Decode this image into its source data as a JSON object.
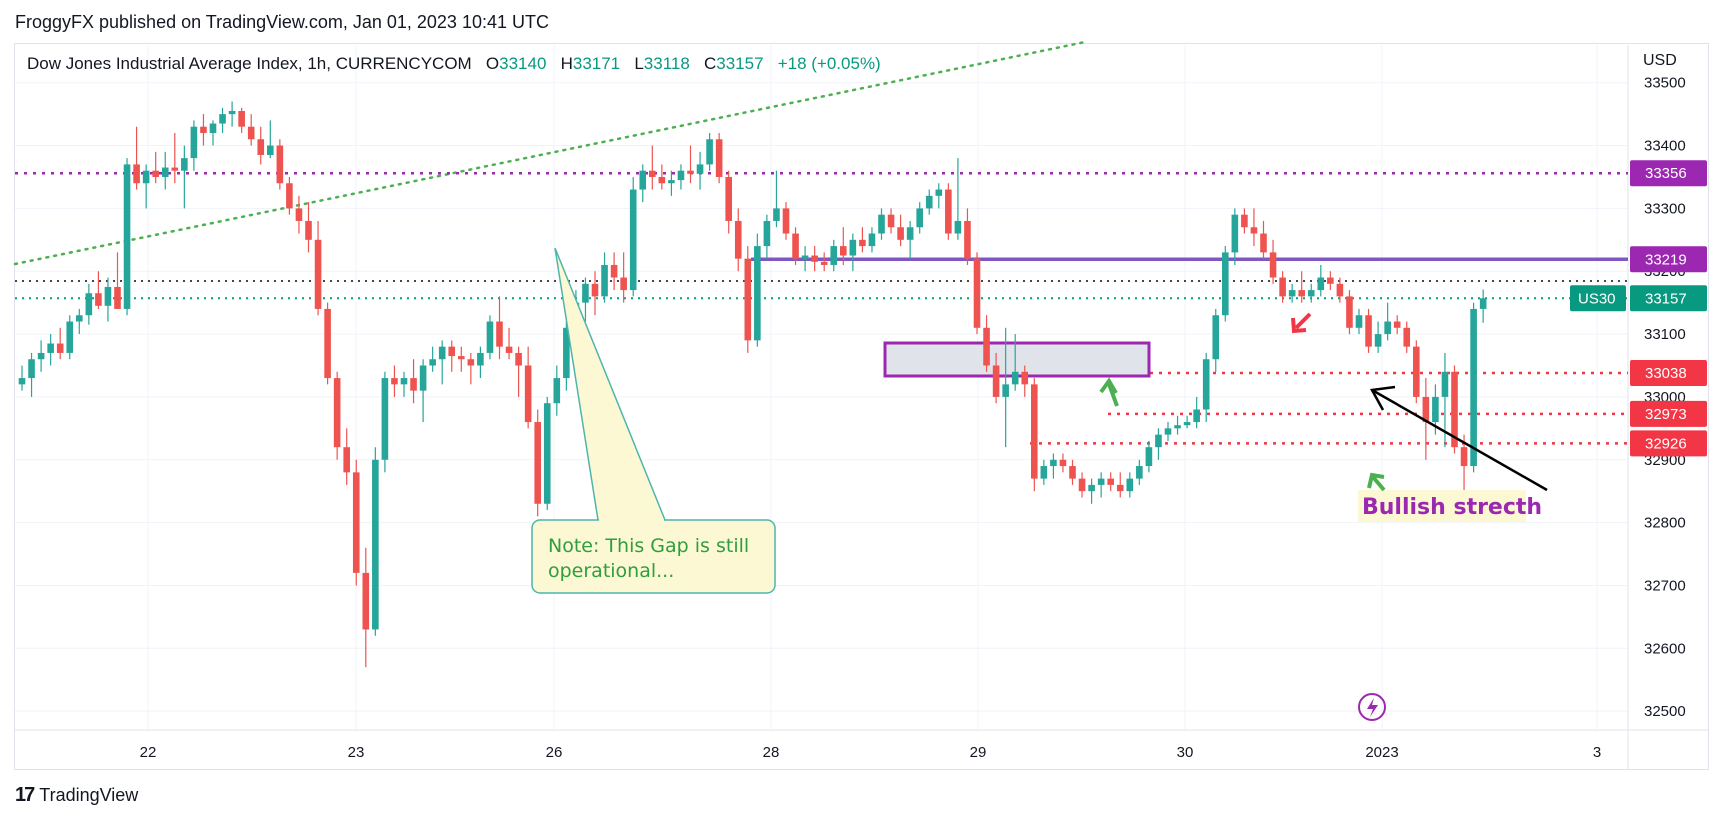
{
  "header": {
    "published": "FroggyFX published on TradingView.com, Jan 01, 2023 10:41 UTC"
  },
  "legend": {
    "symbol": "Dow Jones Industrial Average Index, 1h, CURRENCYCOM",
    "o_label": "O",
    "o_value": "33140",
    "h_label": "H",
    "h_value": "33171",
    "l_label": "L",
    "l_value": "33118",
    "c_label": "C",
    "c_value": "33157",
    "change": "+18 (+0.05%)"
  },
  "axis": {
    "currency": "USD"
  },
  "footer": {
    "brand": "TradingView",
    "logo_glyph": "17"
  },
  "colors": {
    "up": "#26a69a",
    "down": "#ef5350",
    "purple": "#9c27b0",
    "trendline": "#4caf50",
    "red_level": "#f23645",
    "teal_level": "#089981"
  },
  "chart_data": {
    "type": "candlestick",
    "timeframe": "1h",
    "ylim": [
      32470,
      33560
    ],
    "y_ticks": [
      32500,
      32600,
      32700,
      32800,
      32900,
      33000,
      33100,
      33200,
      33300,
      33400,
      33500
    ],
    "x_ticks": [
      "22",
      "23",
      "26",
      "28",
      "29",
      "30",
      "2023",
      "3"
    ],
    "candles": [
      [
        33020,
        33050,
        33010,
        33030
      ],
      [
        33030,
        33070,
        33000,
        33060
      ],
      [
        33060,
        33090,
        33040,
        33070
      ],
      [
        33070,
        33100,
        33050,
        33085
      ],
      [
        33085,
        33110,
        33060,
        33070
      ],
      [
        33070,
        33130,
        33060,
        33120
      ],
      [
        33120,
        33140,
        33100,
        33130
      ],
      [
        33130,
        33180,
        33115,
        33165
      ],
      [
        33165,
        33200,
        33140,
        33145
      ],
      [
        33145,
        33190,
        33120,
        33175
      ],
      [
        33175,
        33230,
        33140,
        33140
      ],
      [
        33140,
        33380,
        33130,
        33370
      ],
      [
        33370,
        33430,
        33330,
        33340
      ],
      [
        33340,
        33370,
        33300,
        33360
      ],
      [
        33360,
        33390,
        33340,
        33350
      ],
      [
        33350,
        33390,
        33330,
        33365
      ],
      [
        33365,
        33420,
        33340,
        33360
      ],
      [
        33360,
        33400,
        33300,
        33380
      ],
      [
        33380,
        33440,
        33360,
        33430
      ],
      [
        33430,
        33450,
        33400,
        33420
      ],
      [
        33420,
        33440,
        33400,
        33435
      ],
      [
        33435,
        33460,
        33420,
        33450
      ],
      [
        33450,
        33470,
        33430,
        33455
      ],
      [
        33455,
        33460,
        33420,
        33430
      ],
      [
        33430,
        33450,
        33400,
        33410
      ],
      [
        33410,
        33430,
        33370,
        33385
      ],
      [
        33385,
        33440,
        33380,
        33400
      ],
      [
        33400,
        33410,
        33330,
        33340
      ],
      [
        33340,
        33350,
        33290,
        33300
      ],
      [
        33300,
        33320,
        33260,
        33280
      ],
      [
        33280,
        33310,
        33230,
        33250
      ],
      [
        33250,
        33280,
        33130,
        33140
      ],
      [
        33140,
        33150,
        33020,
        33030
      ],
      [
        33030,
        33040,
        32900,
        32920
      ],
      [
        32920,
        32950,
        32860,
        32880
      ],
      [
        32880,
        32900,
        32700,
        32720
      ],
      [
        32720,
        32760,
        32570,
        32630
      ],
      [
        32630,
        32920,
        32620,
        32900
      ],
      [
        32900,
        33040,
        32880,
        33030
      ],
      [
        33030,
        33050,
        33000,
        33020
      ],
      [
        33020,
        33040,
        33000,
        33030
      ],
      [
        33030,
        33060,
        32990,
        33010
      ],
      [
        33010,
        33060,
        32960,
        33050
      ],
      [
        33050,
        33080,
        33040,
        33060
      ],
      [
        33060,
        33090,
        33020,
        33080
      ],
      [
        33080,
        33090,
        33040,
        33065
      ],
      [
        33065,
        33080,
        33040,
        33060
      ],
      [
        33060,
        33070,
        33020,
        33050
      ],
      [
        33050,
        33080,
        33030,
        33070
      ],
      [
        33070,
        33130,
        33060,
        33120
      ],
      [
        33120,
        33160,
        33060,
        33080
      ],
      [
        33080,
        33110,
        33060,
        33070
      ],
      [
        33070,
        33080,
        33000,
        33050
      ],
      [
        33050,
        33080,
        32950,
        32960
      ],
      [
        32960,
        32980,
        32810,
        32830
      ],
      [
        32830,
        33000,
        32820,
        32990
      ],
      [
        32990,
        33050,
        32970,
        33030
      ],
      [
        33030,
        33120,
        33010,
        33110
      ],
      [
        33110,
        33170,
        33080,
        33150
      ],
      [
        33150,
        33190,
        33120,
        33180
      ],
      [
        33180,
        33200,
        33130,
        33160
      ],
      [
        33160,
        33230,
        33150,
        33210
      ],
      [
        33210,
        33230,
        33170,
        33190
      ],
      [
        33190,
        33230,
        33150,
        33170
      ],
      [
        33170,
        33350,
        33160,
        33330
      ],
      [
        33330,
        33370,
        33310,
        33360
      ],
      [
        33360,
        33400,
        33330,
        33350
      ],
      [
        33350,
        33370,
        33330,
        33340
      ],
      [
        33340,
        33360,
        33320,
        33345
      ],
      [
        33345,
        33370,
        33330,
        33360
      ],
      [
        33360,
        33400,
        33340,
        33355
      ],
      [
        33355,
        33390,
        33330,
        33370
      ],
      [
        33370,
        33420,
        33360,
        33410
      ],
      [
        33410,
        33420,
        33340,
        33350
      ],
      [
        33350,
        33360,
        33260,
        33280
      ],
      [
        33280,
        33300,
        33200,
        33220
      ],
      [
        33220,
        33240,
        33070,
        33090
      ],
      [
        33090,
        33260,
        33080,
        33240
      ],
      [
        33240,
        33290,
        33220,
        33280
      ],
      [
        33280,
        33360,
        33270,
        33300
      ],
      [
        33300,
        33310,
        33250,
        33260
      ],
      [
        33260,
        33270,
        33210,
        33220
      ],
      [
        33220,
        33240,
        33200,
        33225
      ],
      [
        33225,
        33240,
        33200,
        33215
      ],
      [
        33215,
        33230,
        33200,
        33210
      ],
      [
        33210,
        33250,
        33200,
        33240
      ],
      [
        33240,
        33270,
        33210,
        33225
      ],
      [
        33225,
        33260,
        33200,
        33250
      ],
      [
        33250,
        33270,
        33230,
        33240
      ],
      [
        33240,
        33270,
        33230,
        33260
      ],
      [
        33260,
        33300,
        33250,
        33290
      ],
      [
        33290,
        33300,
        33260,
        33270
      ],
      [
        33270,
        33290,
        33240,
        33250
      ],
      [
        33250,
        33280,
        33220,
        33270
      ],
      [
        33270,
        33310,
        33260,
        33300
      ],
      [
        33300,
        33330,
        33290,
        33320
      ],
      [
        33320,
        33340,
        33300,
        33330
      ],
      [
        33330,
        33340,
        33250,
        33260
      ],
      [
        33260,
        33380,
        33250,
        33280
      ],
      [
        33280,
        33300,
        33210,
        33220
      ],
      [
        33220,
        33230,
        33100,
        33110
      ],
      [
        33110,
        33130,
        33040,
        33050
      ],
      [
        33050,
        33070,
        32990,
        33000
      ],
      [
        33000,
        33110,
        32920,
        33020
      ],
      [
        33020,
        33100,
        33010,
        33040
      ],
      [
        33040,
        33050,
        33000,
        33020
      ],
      [
        33020,
        33030,
        32850,
        32870
      ],
      [
        32870,
        32900,
        32860,
        32890
      ],
      [
        32890,
        32910,
        32870,
        32900
      ],
      [
        32900,
        32910,
        32880,
        32890
      ],
      [
        32890,
        32900,
        32860,
        32870
      ],
      [
        32870,
        32880,
        32840,
        32850
      ],
      [
        32850,
        32870,
        32830,
        32860
      ],
      [
        32860,
        32880,
        32840,
        32870
      ],
      [
        32870,
        32880,
        32850,
        32860
      ],
      [
        32860,
        32880,
        32840,
        32850
      ],
      [
        32850,
        32880,
        32840,
        32870
      ],
      [
        32870,
        32900,
        32860,
        32890
      ],
      [
        32890,
        32930,
        32880,
        32920
      ],
      [
        32920,
        32950,
        32900,
        32940
      ],
      [
        32940,
        32960,
        32930,
        32950
      ],
      [
        32950,
        32970,
        32940,
        32955
      ],
      [
        32955,
        32970,
        32950,
        32960
      ],
      [
        32960,
        33000,
        32950,
        32980
      ],
      [
        32980,
        33070,
        32960,
        33060
      ],
      [
        33060,
        33140,
        33040,
        33130
      ],
      [
        33130,
        33240,
        33120,
        33230
      ],
      [
        33230,
        33300,
        33210,
        33290
      ],
      [
        33290,
        33300,
        33260,
        33270
      ],
      [
        33270,
        33300,
        33240,
        33260
      ],
      [
        33260,
        33280,
        33220,
        33230
      ],
      [
        33230,
        33250,
        33180,
        33190
      ],
      [
        33190,
        33200,
        33150,
        33160
      ],
      [
        33160,
        33180,
        33150,
        33170
      ],
      [
        33170,
        33200,
        33150,
        33160
      ],
      [
        33160,
        33180,
        33150,
        33170
      ],
      [
        33170,
        33210,
        33160,
        33190
      ],
      [
        33190,
        33200,
        33170,
        33180
      ],
      [
        33180,
        33190,
        33150,
        33160
      ],
      [
        33160,
        33170,
        33100,
        33110
      ],
      [
        33110,
        33140,
        33100,
        33130
      ],
      [
        33130,
        33140,
        33070,
        33080
      ],
      [
        33080,
        33120,
        33070,
        33100
      ],
      [
        33100,
        33150,
        33090,
        33120
      ],
      [
        33120,
        33130,
        33100,
        33110
      ],
      [
        33110,
        33120,
        33070,
        33080
      ],
      [
        33080,
        33090,
        32990,
        33000
      ],
      [
        33000,
        33030,
        32900,
        32960
      ],
      [
        32960,
        33020,
        32940,
        33000
      ],
      [
        33000,
        33070,
        32920,
        33040
      ],
      [
        33040,
        33050,
        32910,
        32920
      ],
      [
        32920,
        32940,
        32840,
        32890
      ],
      [
        32890,
        33150,
        32880,
        33140
      ],
      [
        33140,
        33171,
        33118,
        33157
      ]
    ],
    "price_levels": [
      {
        "label": "33356",
        "value": 33356,
        "color": "#9c27b0",
        "style": "dotted"
      },
      {
        "label": "33219",
        "value": 33219,
        "color": "#7e57c2",
        "style": "solid"
      },
      {
        "label": "33038",
        "value": 33038,
        "color": "#f23645",
        "style": "dotted"
      },
      {
        "label": "32973",
        "value": 32973,
        "color": "#f23645",
        "style": "dotted"
      },
      {
        "label": "32926",
        "value": 32926,
        "color": "#f23645",
        "style": "dotted"
      }
    ],
    "current_price": {
      "symbol": "US30",
      "value": "33157"
    },
    "annotations": {
      "note": [
        "Note: This Gap is still",
        "operational..."
      ],
      "callout": "Bullish strecth"
    }
  }
}
